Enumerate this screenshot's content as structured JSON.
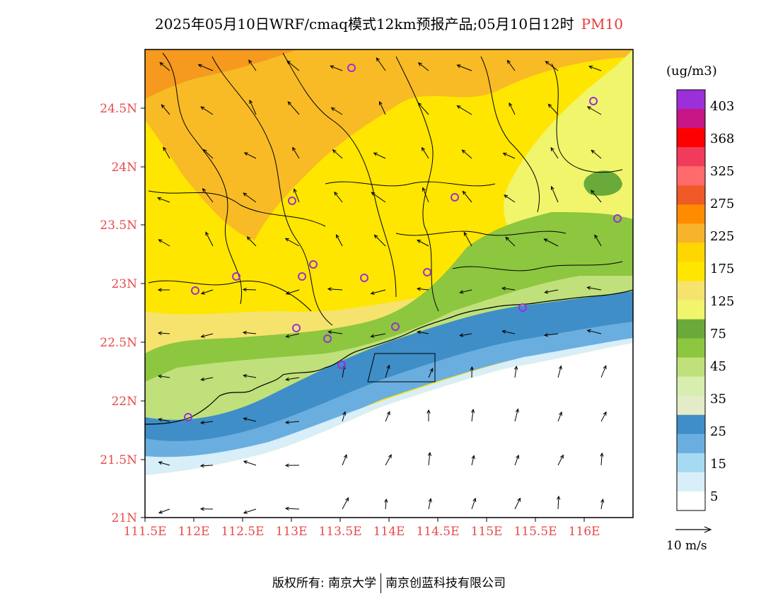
{
  "title": {
    "main": "2025年05月10日WRF/cmaq模式12km预报产品;05月10日12时",
    "species": "PM10"
  },
  "map": {
    "lat_labels": [
      "24.5N",
      "24N",
      "23.5N",
      "23N",
      "22.5N",
      "22N",
      "21.5N",
      "21N"
    ],
    "lon_labels": [
      "111.5E",
      "112E",
      "112.5E",
      "113E",
      "113.5E",
      "114E",
      "114.5E",
      "115E",
      "115.5E",
      "116E"
    ],
    "colors": {
      "axis_label": "#e84a4a",
      "station_marker": "#9a2fd6"
    }
  },
  "colorbar": {
    "unit": "(ug/m3)",
    "levels": [
      "403",
      "368",
      "325",
      "275",
      "225",
      "175",
      "125",
      "75",
      "45",
      "35",
      "25",
      "15",
      "5"
    ],
    "colors": [
      "#9b30d9",
      "#c71585",
      "#ff0000",
      "#f03c5a",
      "#ff6a6a",
      "#f05a28",
      "#ff8c00",
      "#f7b32b",
      "#ffd700",
      "#ffe600",
      "#f5e36e",
      "#f0f56c",
      "#6aaa3a",
      "#8dc63f",
      "#bfe07a",
      "#d8eeb0",
      "#e3ecc6",
      "#3f8ec7",
      "#6aaedf",
      "#a6d9f2",
      "#d8eef8",
      "#ffffff"
    ]
  },
  "wind_reference": {
    "label": "10 m/s"
  },
  "footer": {
    "copyright": "版权所有: 南京大学",
    "company": "南京创蓝科技有限公司"
  }
}
